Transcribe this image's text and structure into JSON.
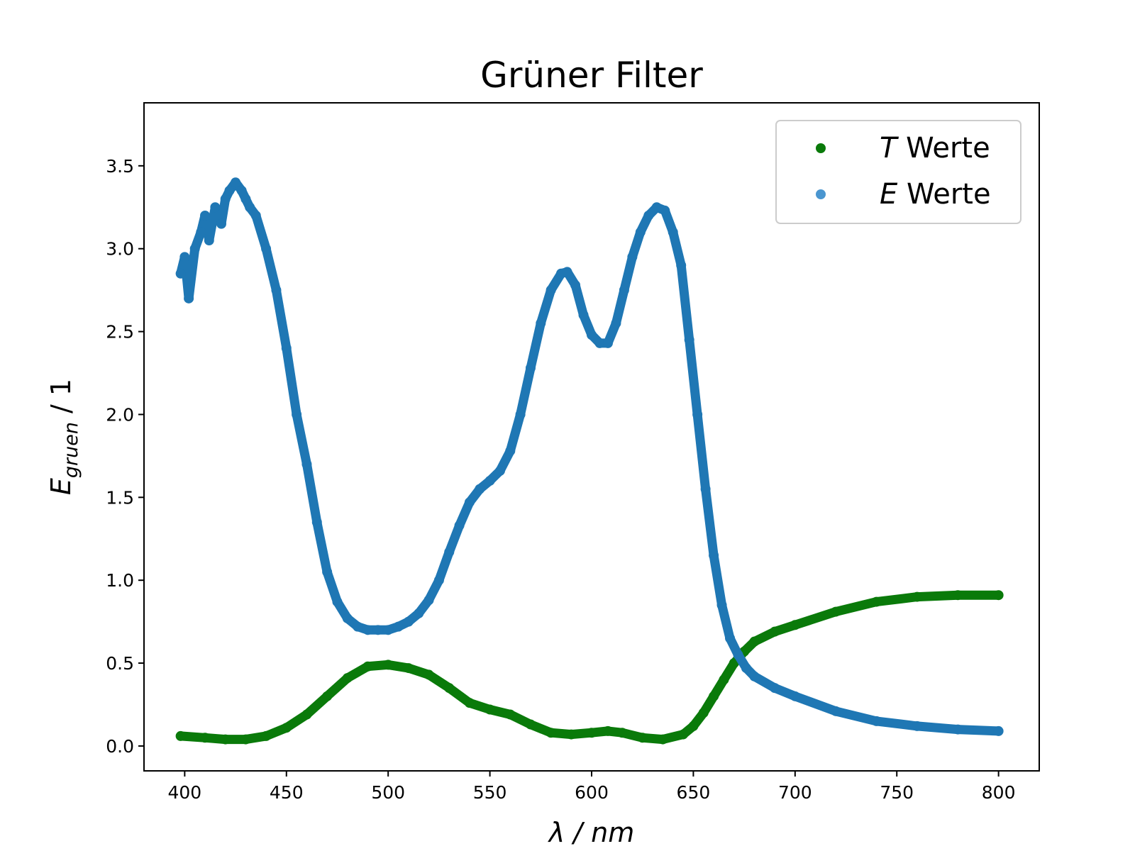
{
  "chart_data": {
    "type": "scatter",
    "title": "Grüner Filter",
    "xlabel": "λ / nm",
    "ylabel": "E_gruen / 1",
    "ylabel_main": "E",
    "ylabel_sub": "gruen",
    "ylabel_rest": " / 1",
    "xlim": [
      380,
      820
    ],
    "ylim": [
      -0.15,
      3.88
    ],
    "xticks": [
      400,
      450,
      500,
      550,
      600,
      650,
      700,
      750,
      800
    ],
    "xtick_labels": [
      "400",
      "450",
      "500",
      "550",
      "600",
      "650",
      "700",
      "750",
      "800"
    ],
    "yticks": [
      0.0,
      0.5,
      1.0,
      1.5,
      2.0,
      2.5,
      3.0,
      3.5
    ],
    "ytick_labels": [
      "0.0",
      "0.5",
      "1.0",
      "1.5",
      "2.0",
      "2.5",
      "3.0",
      "3.5"
    ],
    "grid": false,
    "legend_position": "top-right",
    "series": [
      {
        "name": "T Werte",
        "name_symbol": "T",
        "name_rest": " Werte",
        "color": "#0a7a0a",
        "x": [
          398,
          410,
          420,
          430,
          440,
          450,
          460,
          470,
          480,
          490,
          500,
          510,
          520,
          530,
          540,
          550,
          560,
          570,
          580,
          590,
          600,
          608,
          615,
          625,
          635,
          645,
          650,
          655,
          660,
          665,
          670,
          675,
          680,
          690,
          700,
          720,
          740,
          760,
          780,
          800
        ],
        "y": [
          0.06,
          0.05,
          0.04,
          0.04,
          0.06,
          0.11,
          0.19,
          0.3,
          0.41,
          0.48,
          0.49,
          0.47,
          0.43,
          0.35,
          0.26,
          0.22,
          0.19,
          0.13,
          0.08,
          0.07,
          0.08,
          0.09,
          0.08,
          0.05,
          0.04,
          0.07,
          0.12,
          0.2,
          0.3,
          0.4,
          0.5,
          0.57,
          0.63,
          0.69,
          0.73,
          0.81,
          0.87,
          0.9,
          0.91,
          0.91
        ]
      },
      {
        "name": "E Werte",
        "name_symbol": "E",
        "name_rest": " Werte",
        "color": "#1f77b4",
        "x": [
          398,
          400,
          402,
          405,
          408,
          410,
          412,
          415,
          418,
          420,
          422,
          425,
          428,
          430,
          432,
          435,
          440,
          445,
          450,
          455,
          460,
          465,
          470,
          475,
          480,
          485,
          490,
          495,
          500,
          505,
          510,
          515,
          520,
          525,
          530,
          535,
          540,
          545,
          550,
          555,
          560,
          565,
          570,
          575,
          580,
          585,
          588,
          592,
          596,
          600,
          604,
          608,
          612,
          616,
          620,
          624,
          628,
          632,
          636,
          640,
          644,
          648,
          652,
          656,
          660,
          664,
          668,
          672,
          676,
          680,
          690,
          700,
          720,
          740,
          760,
          780,
          800
        ],
        "y": [
          2.85,
          2.95,
          2.7,
          3.0,
          3.1,
          3.2,
          3.05,
          3.25,
          3.15,
          3.3,
          3.35,
          3.4,
          3.35,
          3.3,
          3.25,
          3.2,
          3.0,
          2.75,
          2.4,
          2.0,
          1.7,
          1.35,
          1.05,
          0.87,
          0.77,
          0.72,
          0.7,
          0.7,
          0.7,
          0.72,
          0.75,
          0.8,
          0.88,
          1.0,
          1.17,
          1.33,
          1.47,
          1.55,
          1.6,
          1.66,
          1.78,
          2.0,
          2.28,
          2.55,
          2.75,
          2.85,
          2.86,
          2.78,
          2.6,
          2.48,
          2.43,
          2.43,
          2.55,
          2.75,
          2.95,
          3.1,
          3.2,
          3.25,
          3.23,
          3.1,
          2.9,
          2.45,
          2.0,
          1.55,
          1.15,
          0.85,
          0.65,
          0.55,
          0.47,
          0.42,
          0.35,
          0.3,
          0.21,
          0.15,
          0.12,
          0.1,
          0.09
        ]
      }
    ]
  }
}
